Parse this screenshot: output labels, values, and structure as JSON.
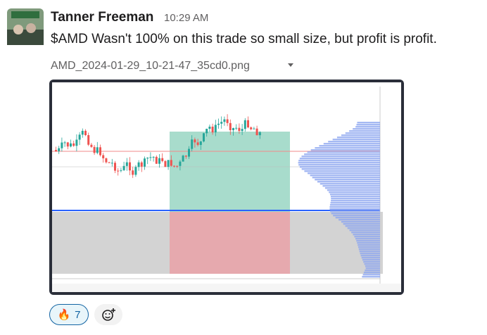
{
  "message": {
    "author": "Tanner Freeman",
    "time": "10:29 AM",
    "text": "$AMD Wasn't 100% on this trade so small size, but profit is profit.",
    "attachment": {
      "filename": "AMD_2024-01-29_10-21-47_35cd0.png"
    },
    "reactions": [
      {
        "emoji": "🔥",
        "count": "7"
      }
    ]
  }
}
